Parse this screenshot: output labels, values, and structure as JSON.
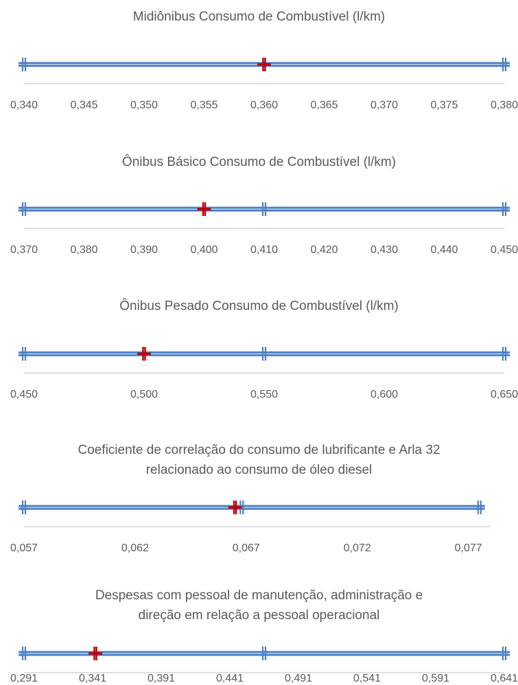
{
  "colors": {
    "line": "#4a7ec1",
    "marker": "#c00000",
    "axis": "#bfbfbf",
    "text": "#595959"
  },
  "chart_data": [
    {
      "type": "scatter",
      "title_lines": [
        "Midiônibus Consumo de Combustível (l/km)"
      ],
      "xlim": [
        0.34,
        0.38
      ],
      "tick_values": [
        0.34,
        0.345,
        0.35,
        0.355,
        0.36,
        0.365,
        0.37,
        0.375,
        0.38
      ],
      "tick_labels": [
        "0,340",
        "0,345",
        "0,350",
        "0,355",
        "0,360",
        "0,365",
        "0,370",
        "0,375",
        "0,380"
      ],
      "range": [
        0.34,
        0.38
      ],
      "blue_markers": [
        0.34,
        0.38
      ],
      "red_marker": 0.36
    },
    {
      "type": "scatter",
      "title_lines": [
        "Ônibus Básico Consumo de Combustível (l/km)"
      ],
      "xlim": [
        0.37,
        0.45
      ],
      "tick_values": [
        0.37,
        0.38,
        0.39,
        0.4,
        0.41,
        0.42,
        0.43,
        0.44,
        0.45
      ],
      "tick_labels": [
        "0,370",
        "0,380",
        "0,390",
        "0,400",
        "0,410",
        "0,420",
        "0,430",
        "0,440",
        "0,450"
      ],
      "range": [
        0.37,
        0.45
      ],
      "blue_markers": [
        0.37,
        0.41,
        0.45
      ],
      "red_marker": 0.4
    },
    {
      "type": "scatter",
      "title_lines": [
        "Ônibus Pesado Consumo de Combustível (l/km)"
      ],
      "xlim": [
        0.45,
        0.65
      ],
      "tick_values": [
        0.45,
        0.5,
        0.55,
        0.6,
        0.65
      ],
      "tick_labels": [
        "0,450",
        "0,500",
        "0,550",
        "0,600",
        "0,650"
      ],
      "range": [
        0.45,
        0.65
      ],
      "blue_markers": [
        0.45,
        0.55,
        0.65
      ],
      "red_marker": 0.5
    },
    {
      "type": "scatter",
      "title_lines": [
        "Coeficiente de correlação do consumo de lubrificante e Arla 32",
        "relacionado ao consumo de óleo diesel"
      ],
      "xlim": [
        0.057,
        0.078
      ],
      "tick_values": [
        0.057,
        0.062,
        0.067,
        0.072,
        0.077
      ],
      "tick_labels": [
        "0,057",
        "0,062",
        "0,067",
        "0,072",
        "0,077"
      ],
      "range": [
        0.057,
        0.0775
      ],
      "blue_markers": [
        0.057,
        0.0668,
        0.0775
      ],
      "red_marker": 0.0665
    },
    {
      "type": "scatter",
      "title_lines": [
        "Despesas com pessoal de manutenção, administração e",
        "direção em relação a pessoal operacional"
      ],
      "xlim": [
        0.291,
        0.641
      ],
      "tick_values": [
        0.291,
        0.341,
        0.391,
        0.441,
        0.491,
        0.541,
        0.591,
        0.641
      ],
      "tick_labels": [
        "0,291",
        "0,341",
        "0,391",
        "0,441",
        "0,491",
        "0,541",
        "0,591",
        "0,641"
      ],
      "range": [
        0.291,
        0.641
      ],
      "blue_markers": [
        0.291,
        0.466,
        0.641
      ],
      "red_marker": 0.343
    }
  ]
}
